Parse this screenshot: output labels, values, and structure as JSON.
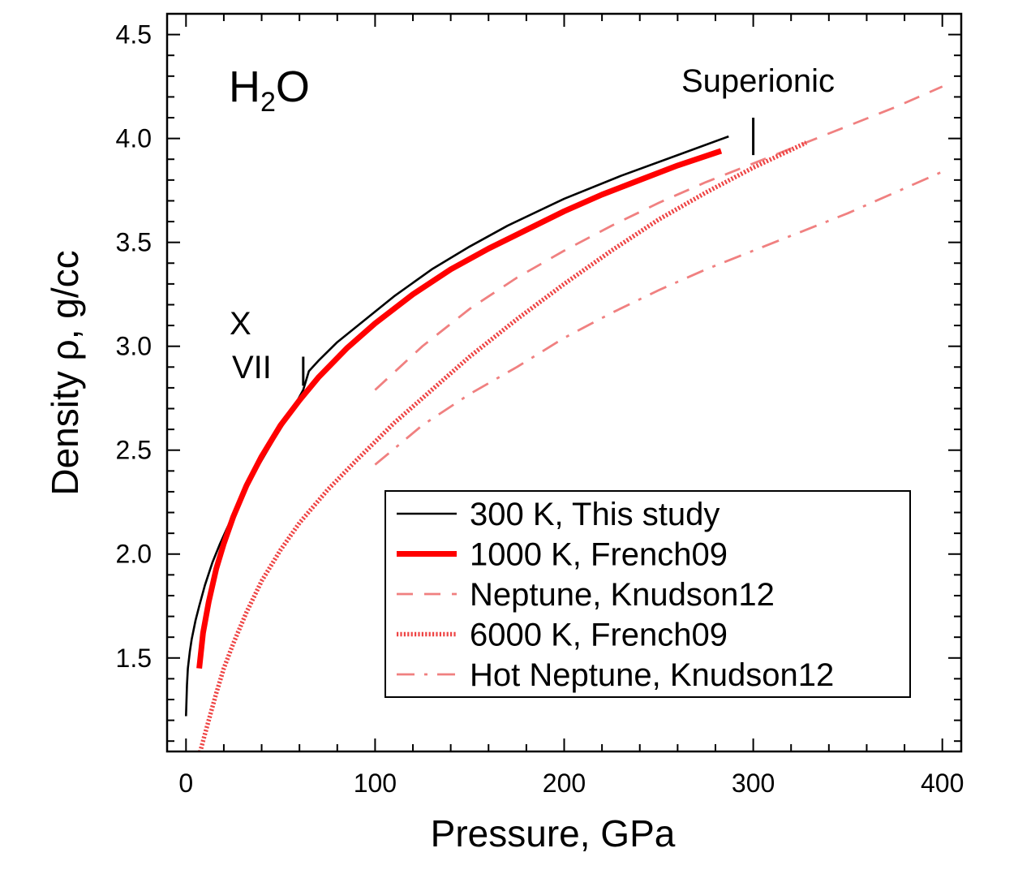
{
  "chart_data": {
    "type": "line",
    "title": "",
    "formula": {
      "main": "H",
      "sub": "2",
      "rest": "O"
    },
    "xlabel": "Pressure, GPa",
    "ylabel": "Density ρ,  g/cc",
    "xlim": [
      -10,
      410
    ],
    "ylim": [
      1.05,
      4.6
    ],
    "xticks": [
      0,
      100,
      200,
      300,
      400
    ],
    "xtick_labels": [
      "0",
      "100",
      "200",
      "300",
      "400"
    ],
    "yticks": [
      1.5,
      2.0,
      2.5,
      3.0,
      3.5,
      4.0,
      4.5
    ],
    "ytick_labels": [
      "1.5",
      "2.0",
      "2.5",
      "3.0",
      "3.5",
      "4.0",
      "4.5"
    ],
    "grid": false,
    "series": [
      {
        "name": "300 K,  This study",
        "color": "#000000",
        "style": "solid",
        "x": [
          0,
          0.5,
          1,
          2,
          3,
          5,
          7,
          10,
          14,
          18,
          23,
          30,
          38,
          47,
          56,
          62,
          65,
          70,
          80,
          95,
          110,
          130,
          150,
          170,
          200,
          230,
          260,
          287
        ],
        "y": [
          1.22,
          1.37,
          1.45,
          1.53,
          1.59,
          1.68,
          1.75,
          1.85,
          1.96,
          2.05,
          2.15,
          2.28,
          2.42,
          2.56,
          2.69,
          2.79,
          2.88,
          2.93,
          3.02,
          3.13,
          3.24,
          3.37,
          3.48,
          3.58,
          3.71,
          3.82,
          3.92,
          4.01
        ]
      },
      {
        "name": "1000 K, French09",
        "color": "#ff0000",
        "style": "thick",
        "x": [
          7,
          9,
          12,
          16,
          20,
          25,
          32,
          40,
          50,
          60,
          70,
          85,
          100,
          120,
          140,
          160,
          180,
          200,
          220,
          240,
          260,
          283
        ],
        "y": [
          1.45,
          1.62,
          1.77,
          1.93,
          2.05,
          2.18,
          2.33,
          2.47,
          2.62,
          2.74,
          2.85,
          2.99,
          3.11,
          3.25,
          3.37,
          3.47,
          3.56,
          3.65,
          3.73,
          3.8,
          3.87,
          3.94
        ]
      },
      {
        "name": "Neptune, Knudson12",
        "color": "#f08080",
        "style": "dashed",
        "x": [
          100,
          125,
          150,
          175,
          200,
          225,
          250,
          275,
          300,
          325,
          350,
          375,
          400
        ],
        "y": [
          2.79,
          3.0,
          3.18,
          3.33,
          3.46,
          3.58,
          3.69,
          3.79,
          3.88,
          3.97,
          4.06,
          4.15,
          4.25
        ]
      },
      {
        "name": "6000 K, French09",
        "color": "#ee4444",
        "style": "dotted",
        "x": [
          7,
          9,
          12,
          16,
          20,
          25,
          32,
          40,
          50,
          60,
          75,
          90,
          110,
          130,
          150,
          175,
          200,
          225,
          250,
          275,
          300,
          328
        ],
        "y": [
          1.03,
          1.1,
          1.2,
          1.33,
          1.45,
          1.57,
          1.72,
          1.87,
          2.02,
          2.15,
          2.31,
          2.45,
          2.63,
          2.79,
          2.95,
          3.13,
          3.3,
          3.46,
          3.61,
          3.74,
          3.86,
          3.98
        ]
      },
      {
        "name": "Hot Neptune, Knudson12",
        "color": "#f08080",
        "style": "dashdot",
        "x": [
          100,
          125,
          150,
          175,
          200,
          225,
          250,
          275,
          300,
          325,
          350,
          375,
          400
        ],
        "y": [
          2.43,
          2.62,
          2.77,
          2.9,
          3.04,
          3.16,
          3.27,
          3.37,
          3.46,
          3.55,
          3.64,
          3.74,
          3.84
        ]
      }
    ],
    "annotations": [
      {
        "text": "X",
        "near_series": "300 K"
      },
      {
        "text": "VII",
        "near_series": "300 K"
      },
      {
        "text": "Superionic",
        "marker_at": {
          "x": 300,
          "y": [
            3.92,
            4.1
          ]
        }
      }
    ],
    "phase_marker_vii_x": {
      "x": 62,
      "y": [
        2.81,
        2.95
      ]
    },
    "legend_position": "lower-right"
  }
}
